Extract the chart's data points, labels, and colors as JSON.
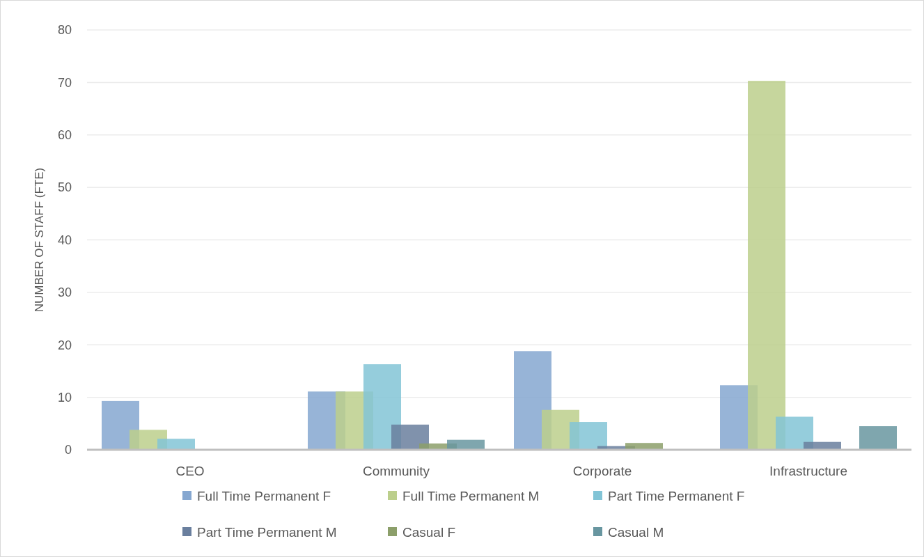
{
  "chart_data": {
    "type": "bar",
    "ylabel": "NUMBER OF STAFF (FTE)",
    "categories": [
      "CEO",
      "Community",
      "Corporate",
      "Infrastructure"
    ],
    "series": [
      {
        "name": "Full Time Permanent F",
        "color": "#85a7d0",
        "values": [
          9.3,
          11.1,
          18.8,
          12.3
        ]
      },
      {
        "name": "Full Time Permanent M",
        "color": "#bccf8c",
        "values": [
          3.8,
          11.1,
          7.6,
          70.3
        ]
      },
      {
        "name": "Part Time Permanent F",
        "color": "#82c4d6",
        "values": [
          2.1,
          16.3,
          5.3,
          6.3
        ]
      },
      {
        "name": "Part Time Permanent M",
        "color": "#6a7f9e",
        "values": [
          0,
          4.8,
          0.7,
          1.5
        ]
      },
      {
        "name": "Casual F",
        "color": "#8c9f6a",
        "values": [
          0,
          1.2,
          1.3,
          0
        ]
      },
      {
        "name": "Casual M",
        "color": "#6896a0",
        "values": [
          0,
          1.9,
          0,
          4.5
        ]
      }
    ],
    "ylim": [
      0,
      80
    ],
    "yticks": [
      0,
      10,
      20,
      30,
      40,
      50,
      60,
      70,
      80
    ],
    "grid": "y",
    "legend": "bottom"
  }
}
